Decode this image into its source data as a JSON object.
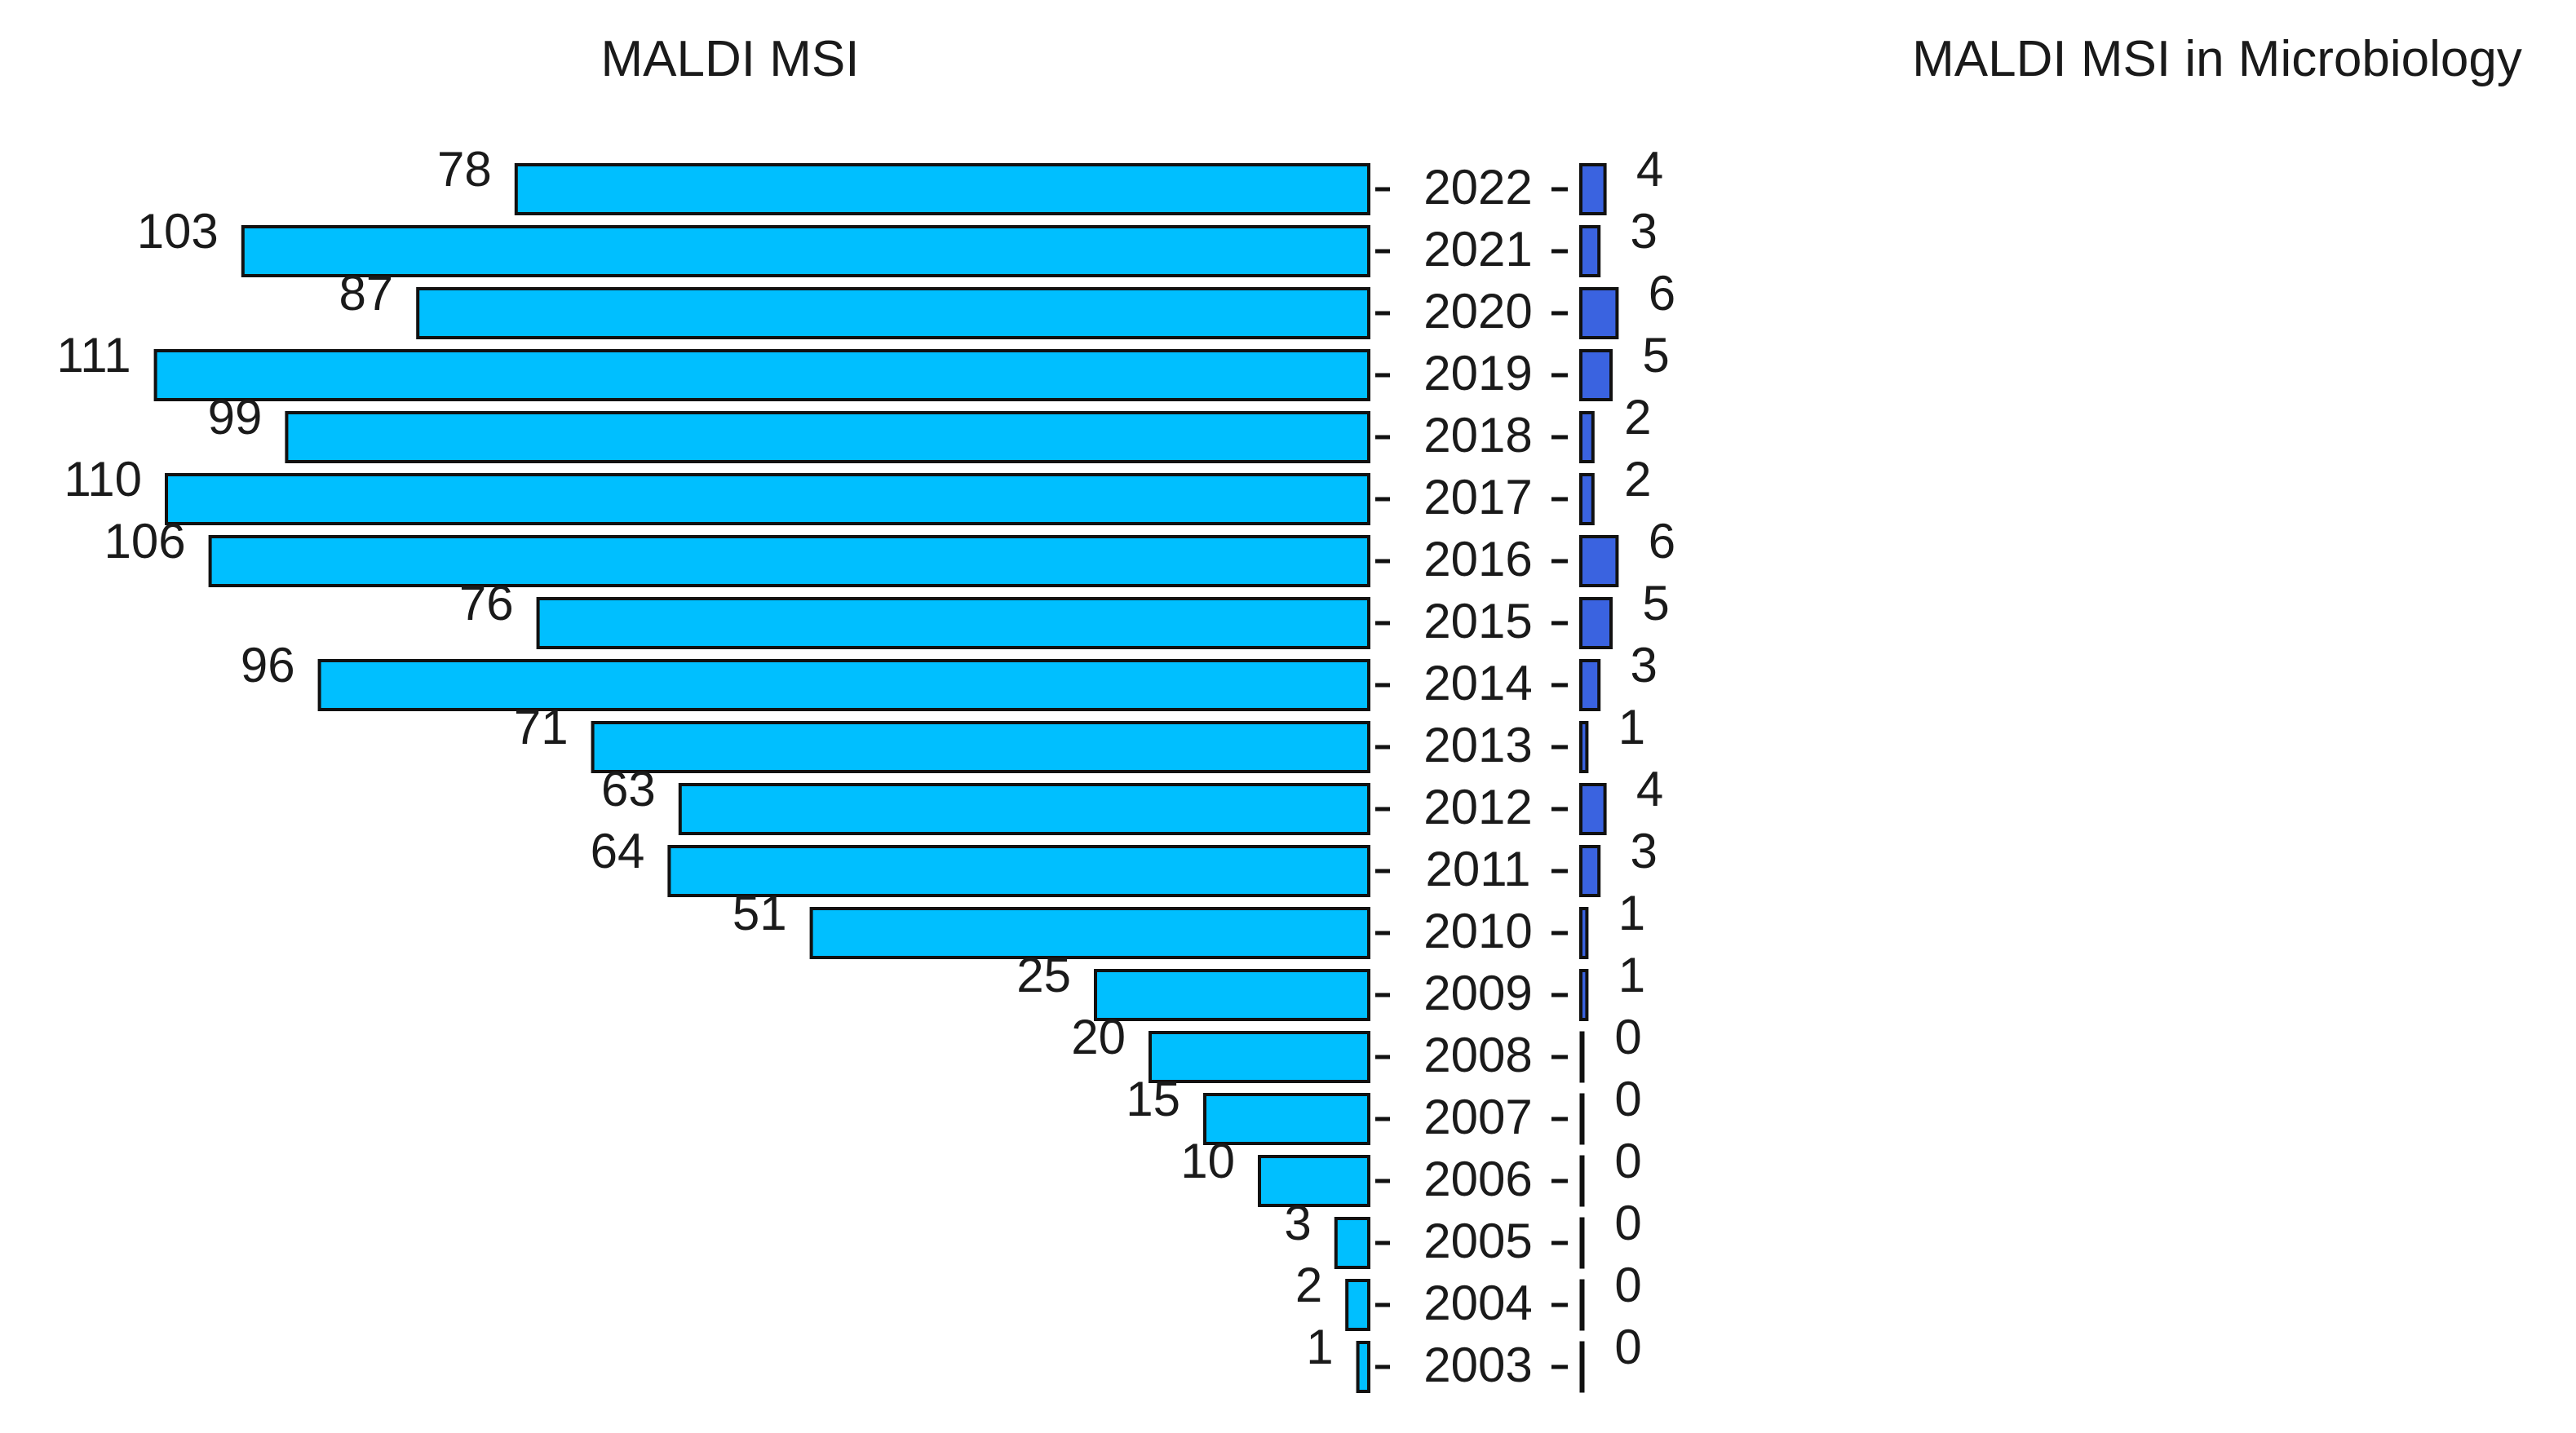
{
  "chart_data": [
    {
      "type": "bar",
      "orientation": "horizontal-left",
      "title": "MALDI MSI",
      "color": "#00BFFF",
      "categories": [
        "2022",
        "2021",
        "2020",
        "2019",
        "2018",
        "2017",
        "2016",
        "2015",
        "2014",
        "2013",
        "2012",
        "2011",
        "2010",
        "2009",
        "2008",
        "2007",
        "2006",
        "2005",
        "2004",
        "2003"
      ],
      "values": [
        78,
        103,
        87,
        111,
        99,
        110,
        106,
        76,
        96,
        71,
        63,
        64,
        51,
        25,
        20,
        15,
        10,
        3,
        2,
        1
      ]
    },
    {
      "type": "bar",
      "orientation": "horizontal-right",
      "title": "MALDI MSI in Microbiology",
      "color": "#3A63E0",
      "categories": [
        "2022",
        "2021",
        "2020",
        "2019",
        "2018",
        "2017",
        "2016",
        "2015",
        "2014",
        "2013",
        "2012",
        "2011",
        "2010",
        "2009",
        "2008",
        "2007",
        "2006",
        "2005",
        "2004",
        "2003"
      ],
      "values": [
        4,
        3,
        6,
        5,
        2,
        2,
        6,
        5,
        3,
        1,
        4,
        3,
        1,
        1,
        0,
        0,
        0,
        0,
        0,
        0
      ]
    }
  ]
}
